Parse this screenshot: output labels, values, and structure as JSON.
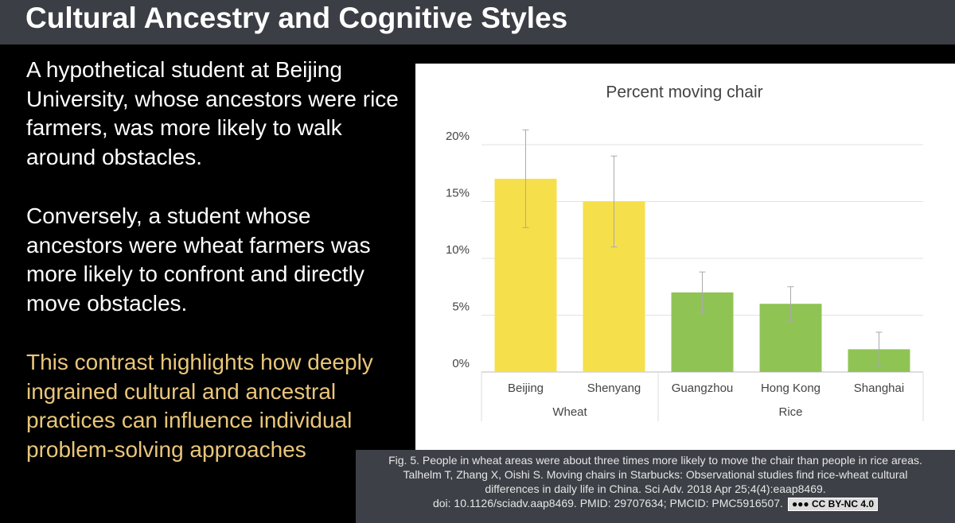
{
  "slide": {
    "title": "Cultural Ancestry and Cognitive Styles",
    "paragraphs": [
      "A hypothetical student at Beijing University, whose ancestors were rice farmers, was more likely to walk around obstacles.",
      "Conversely, a student whose ancestors were wheat farmers was more likely to confront and directly move obstacles.",
      "This contrast highlights how deeply ingrained cultural and ancestral practices can influence individual problem-solving approaches"
    ],
    "caption": [
      "Fig. 5. People in wheat areas were about three times more likely to move the chair than people in rice areas.",
      "Talhelm T, Zhang X, Oishi S. Moving chairs in Starbucks: Observational studies find rice-wheat cultural",
      "differences in daily life in China. Sci Adv. 2018 Apr 25;4(4):eaap8469.",
      "doi: 10.1126/sciadv.aap8469. PMID: 29707634; PMCID: PMC5916507."
    ],
    "license": "CC BY-NC 4.0"
  },
  "chart_data": {
    "type": "bar",
    "title": "Percent moving chair",
    "categories": [
      "Beijing",
      "Shenyang",
      "Guangzhou",
      "Hong Kong",
      "Shanghai"
    ],
    "values": [
      17,
      15,
      7,
      6,
      2
    ],
    "errors": [
      4.3,
      4,
      1.8,
      1.5,
      1.5
    ],
    "groups": [
      {
        "name": "Wheat",
        "count": 2,
        "color": "#f5df4b"
      },
      {
        "name": "Rice",
        "count": 3,
        "color": "#8fc455"
      }
    ],
    "ylim": [
      0,
      20
    ],
    "yticks": [
      {
        "value": 0,
        "label": "0%"
      },
      {
        "value": 5,
        "label": "5%"
      },
      {
        "value": 10,
        "label": "10%"
      },
      {
        "value": 15,
        "label": "15%"
      },
      {
        "value": 20,
        "label": "20%"
      }
    ],
    "grid": true
  }
}
